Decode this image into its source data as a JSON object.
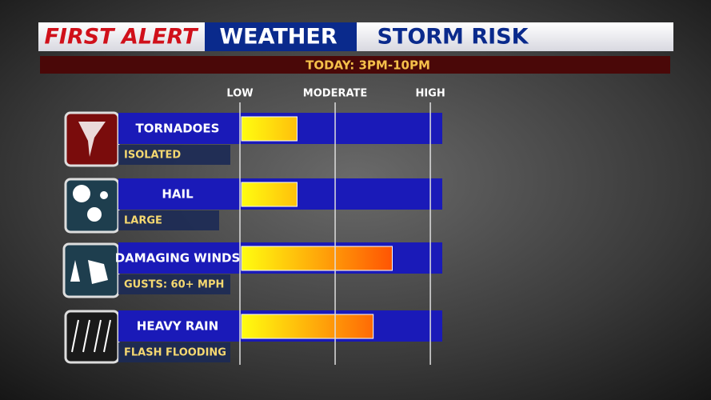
{
  "brand": "FIRST ALERT",
  "section": "WEATHER",
  "chart_data": {
    "type": "bar",
    "orientation": "horizontal",
    "title": "STORM RISK",
    "subtitle": "TODAY: 3PM-10PM",
    "categories": [
      "TORNADOES",
      "HAIL",
      "DAMAGING WINDS",
      "HEAVY RAIN"
    ],
    "details": [
      "ISOLATED",
      "LARGE",
      "GUSTS: 60+ MPH",
      "FLASH FLOODING"
    ],
    "values": [
      0.6,
      0.6,
      1.6,
      1.4
    ],
    "colors": [
      "#ffff10",
      "#ff2a00"
    ],
    "xlim": [
      0,
      2.1
    ],
    "xticks": [
      {
        "value": 0,
        "label": "LOW"
      },
      {
        "value": 1,
        "label": "MODERATE"
      },
      {
        "value": 2,
        "label": "HIGH"
      }
    ],
    "grid": true
  }
}
